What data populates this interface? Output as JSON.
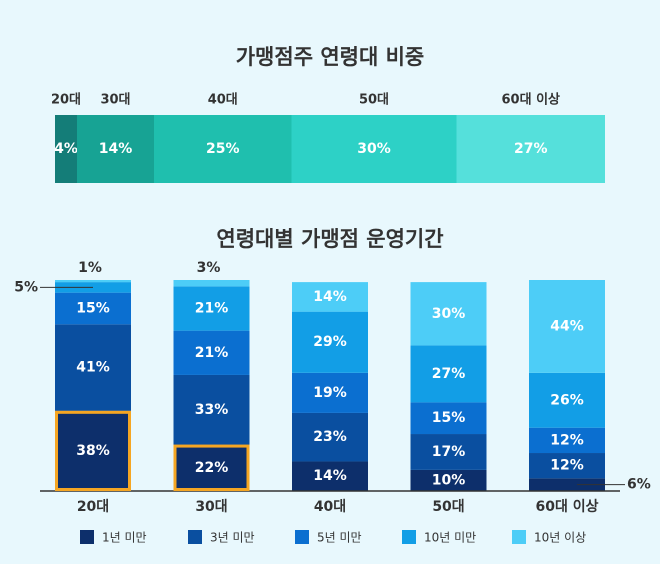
{
  "chart_data": [
    {
      "type": "stacked_bar",
      "title": "가맹점주 연령대 비중",
      "categories": [
        "20대",
        "30대",
        "40대",
        "50대",
        "60대 이상"
      ],
      "values": [
        4,
        14,
        25,
        30,
        27
      ],
      "value_labels": [
        "4%",
        "14%",
        "25%",
        "30%",
        "27%"
      ],
      "colors": [
        "#147d78",
        "#17a394",
        "#1fbfae",
        "#2dd1c6",
        "#55e0db"
      ],
      "xlim": [
        0,
        100
      ]
    },
    {
      "type": "stacked_column",
      "title": "연령대별 가맹점 운영기간",
      "categories": [
        "20대",
        "30대",
        "40대",
        "50대",
        "60대 이상"
      ],
      "ylim": [
        0,
        100
      ],
      "series": [
        {
          "name": "1년 미만",
          "color": "#0d2f6b",
          "values": [
            38,
            22,
            14,
            10,
            6
          ],
          "value_labels": [
            "38%",
            "22%",
            "14%",
            "10%",
            "6%"
          ]
        },
        {
          "name": "3년 미만",
          "color": "#0a4fa0",
          "values": [
            41,
            33,
            23,
            17,
            12
          ],
          "value_labels": [
            "41%",
            "33%",
            "23%",
            "17%",
            "12%"
          ]
        },
        {
          "name": "5년 미만",
          "color": "#0b6fd0",
          "values": [
            15,
            21,
            19,
            15,
            12
          ],
          "value_labels": [
            "15%",
            "21%",
            "19%",
            "15%",
            "12%"
          ]
        },
        {
          "name": "10년 미만",
          "color": "#129ee6",
          "values": [
            5,
            21,
            29,
            27,
            26
          ],
          "value_labels": [
            "5%",
            "21%",
            "29%",
            "27%",
            "26%"
          ]
        },
        {
          "name": "10년 이상",
          "color": "#4dcdf7",
          "values": [
            1,
            3,
            14,
            30,
            44
          ],
          "value_labels": [
            "1%",
            "3%",
            "14%",
            "30%",
            "44%"
          ]
        }
      ],
      "highlight": {
        "series": 0,
        "categories": [
          0,
          1
        ],
        "color": "#f5a623"
      }
    }
  ]
}
